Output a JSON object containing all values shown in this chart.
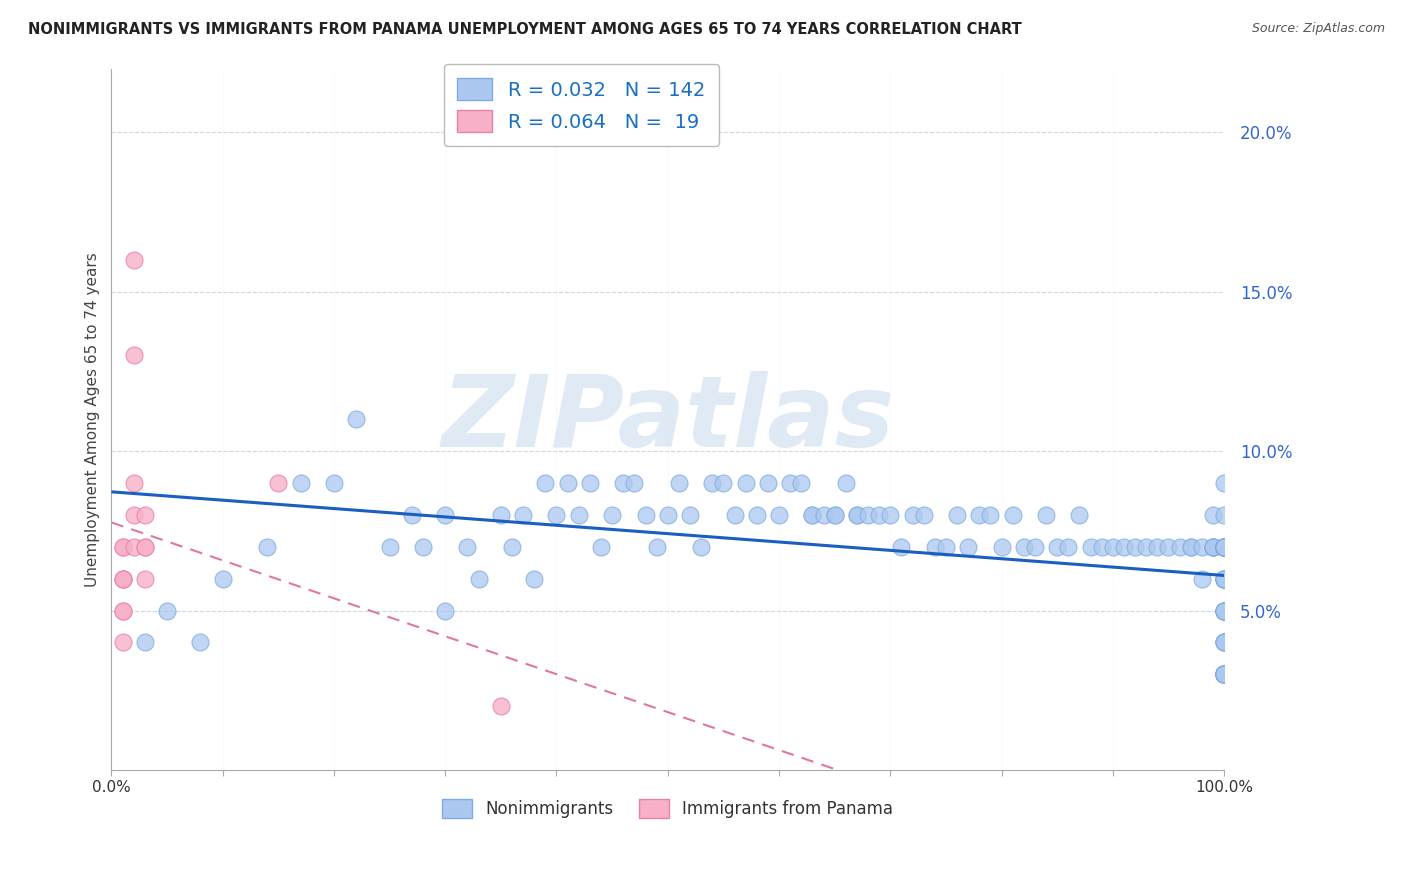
{
  "title": "NONIMMIGRANTS VS IMMIGRANTS FROM PANAMA UNEMPLOYMENT AMONG AGES 65 TO 74 YEARS CORRELATION CHART",
  "source": "Source: ZipAtlas.com",
  "ylabel": "Unemployment Among Ages 65 to 74 years",
  "xlim": [
    0,
    100
  ],
  "ylim": [
    0,
    22
  ],
  "yticks": [
    5,
    10,
    15,
    20
  ],
  "ytick_labels": [
    "5.0%",
    "10.0%",
    "15.0%",
    "20.0%"
  ],
  "nonimmigrant_color": "#aac8f0",
  "nonimmigrant_edge": "#80aae0",
  "immigrant_color": "#f8b0c8",
  "immigrant_edge": "#e880a8",
  "blue_line_color": "#1a5fc0",
  "pink_line_color": "#e07898",
  "watermark_color": "#ccdcee",
  "nonimmigrant_R": 0.032,
  "nonimmigrant_N": 142,
  "immigrant_R": 0.064,
  "immigrant_N": 19,
  "legend_R1": "0.032",
  "legend_N1": "142",
  "legend_R2": "0.064",
  "legend_N2": "19",
  "ni_x": [
    3,
    5,
    8,
    10,
    14,
    17,
    20,
    22,
    25,
    27,
    28,
    30,
    30,
    32,
    33,
    35,
    36,
    37,
    38,
    39,
    40,
    41,
    42,
    43,
    44,
    45,
    46,
    47,
    48,
    49,
    50,
    51,
    52,
    53,
    54,
    55,
    56,
    57,
    58,
    59,
    60,
    61,
    62,
    63,
    63,
    64,
    65,
    65,
    66,
    67,
    67,
    68,
    69,
    70,
    71,
    72,
    73,
    74,
    75,
    76,
    77,
    78,
    79,
    80,
    81,
    82,
    83,
    84,
    85,
    86,
    87,
    88,
    89,
    90,
    91,
    92,
    93,
    94,
    95,
    96,
    97,
    97,
    98,
    98,
    99,
    99,
    99,
    99,
    99,
    100,
    100,
    100,
    100,
    100,
    100,
    100,
    100,
    100,
    100,
    100,
    100,
    100,
    100,
    100,
    100,
    100,
    100,
    100,
    100,
    100,
    100,
    100,
    100,
    100,
    100,
    100,
    100,
    100,
    100,
    100,
    100,
    100,
    100,
    100,
    100,
    100,
    100,
    100,
    100,
    100,
    100,
    100,
    100,
    100,
    100,
    100,
    100,
    100,
    100,
    100,
    100,
    100
  ],
  "ni_y": [
    4,
    5,
    4,
    6,
    7,
    9,
    9,
    11,
    7,
    8,
    7,
    5,
    8,
    7,
    6,
    8,
    7,
    8,
    6,
    9,
    8,
    9,
    8,
    9,
    7,
    8,
    9,
    9,
    8,
    7,
    8,
    9,
    8,
    7,
    9,
    9,
    8,
    9,
    8,
    9,
    8,
    9,
    9,
    8,
    8,
    8,
    8,
    8,
    9,
    8,
    8,
    8,
    8,
    8,
    7,
    8,
    8,
    7,
    7,
    8,
    7,
    8,
    8,
    7,
    8,
    7,
    7,
    8,
    7,
    7,
    8,
    7,
    7,
    7,
    7,
    7,
    7,
    7,
    7,
    7,
    7,
    7,
    6,
    7,
    8,
    7,
    7,
    7,
    7,
    7,
    7,
    7,
    7,
    7,
    7,
    7,
    7,
    7,
    7,
    7,
    6,
    6,
    6,
    6,
    6,
    6,
    5,
    5,
    5,
    5,
    5,
    5,
    5,
    4,
    4,
    4,
    4,
    3,
    3,
    3,
    3,
    3,
    3,
    3,
    3,
    3,
    3,
    3,
    3,
    3,
    3,
    3,
    7,
    7,
    7,
    7,
    7,
    7,
    7,
    7,
    8,
    9
  ],
  "im_x": [
    1,
    1,
    1,
    1,
    1,
    1,
    1,
    1,
    2,
    2,
    2,
    2,
    2,
    3,
    3,
    3,
    3,
    15,
    35
  ],
  "im_y": [
    7,
    7,
    6,
    6,
    6,
    5,
    5,
    4,
    16,
    13,
    9,
    8,
    7,
    8,
    7,
    7,
    6,
    9,
    2
  ]
}
